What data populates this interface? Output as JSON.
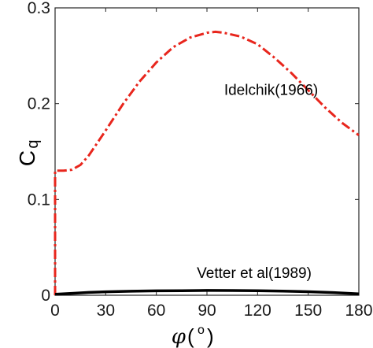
{
  "chart_data": {
    "type": "line",
    "xlim": [
      0,
      180
    ],
    "ylim": [
      0,
      0.3
    ],
    "x_ticks": [
      "0",
      "30",
      "60",
      "90",
      "120",
      "150",
      "180"
    ],
    "y_ticks": [
      "0",
      "0.1",
      "0.2",
      "0.3"
    ],
    "xlabel": {
      "symbol": "φ",
      "open": "(",
      "unit": "o",
      "close": ")"
    },
    "ylabel": {
      "main": "C",
      "sub": "q"
    },
    "grid": false,
    "series": [
      {
        "name": "Idelchik(1966)",
        "color": "#e8261d",
        "style": "dash-dot",
        "points": [
          [
            0,
            0
          ],
          [
            0,
            0.13
          ],
          [
            5,
            0.13
          ],
          [
            10,
            0.131
          ],
          [
            15,
            0.136
          ],
          [
            20,
            0.146
          ],
          [
            30,
            0.172
          ],
          [
            40,
            0.199
          ],
          [
            50,
            0.223
          ],
          [
            60,
            0.243
          ],
          [
            70,
            0.259
          ],
          [
            80,
            0.269
          ],
          [
            90,
            0.274
          ],
          [
            95,
            0.275
          ],
          [
            100,
            0.274
          ],
          [
            110,
            0.27
          ],
          [
            120,
            0.262
          ],
          [
            130,
            0.248
          ],
          [
            140,
            0.232
          ],
          [
            150,
            0.214
          ],
          [
            160,
            0.196
          ],
          [
            170,
            0.18
          ],
          [
            180,
            0.167
          ]
        ]
      },
      {
        "name": "Vetter et al(1989)",
        "color": "#000000",
        "style": "solid",
        "points": [
          [
            0,
            0.001
          ],
          [
            10,
            0.002
          ],
          [
            20,
            0.003
          ],
          [
            30,
            0.0036
          ],
          [
            45,
            0.0042
          ],
          [
            60,
            0.0046
          ],
          [
            75,
            0.0048
          ],
          [
            90,
            0.005
          ],
          [
            105,
            0.0049
          ],
          [
            120,
            0.0047
          ],
          [
            135,
            0.0043
          ],
          [
            150,
            0.0037
          ],
          [
            165,
            0.0028
          ],
          [
            180,
            0.0015
          ]
        ]
      }
    ],
    "annotations": [
      {
        "text": "Idelchik(1966)",
        "x": 128,
        "y": 0.209
      },
      {
        "text": "Vetter et al(1989)",
        "x": 118,
        "y": 0.018
      }
    ]
  }
}
